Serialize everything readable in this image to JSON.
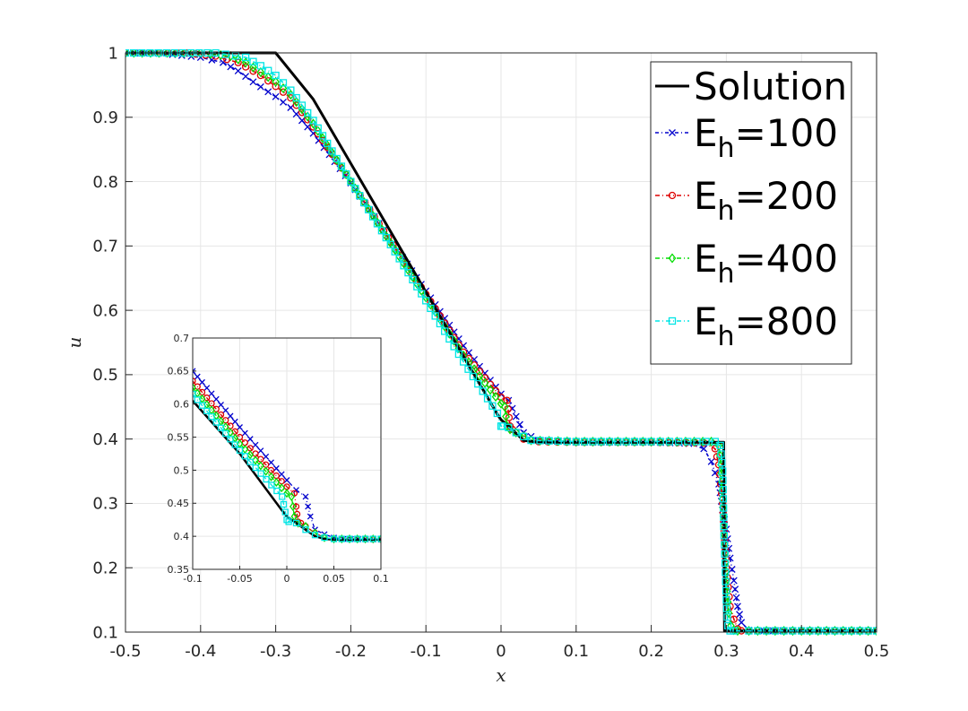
{
  "chart_data": [
    {
      "type": "line",
      "title": "",
      "xlabel": "x",
      "ylabel": "u",
      "xlim": [
        -0.5,
        0.5
      ],
      "ylim": [
        0.1,
        1
      ],
      "xticks": [
        -0.5,
        -0.4,
        -0.3,
        -0.2,
        -0.1,
        0,
        0.1,
        0.2,
        0.3,
        0.4,
        0.5
      ],
      "xtick_labels": [
        "-0.5",
        "-0.4",
        "-0.3",
        "-0.2",
        "-0.1",
        "0",
        "0.1",
        "0.2",
        "0.3",
        "0.4",
        "0.5"
      ],
      "yticks": [
        0.1,
        0.2,
        0.3,
        0.4,
        0.5,
        0.6,
        0.7,
        0.8,
        0.9,
        1
      ],
      "ytick_labels": [
        "0.1",
        "0.2",
        "0.3",
        "0.4",
        "0.5",
        "0.6",
        "0.7",
        "0.8",
        "0.9",
        "1"
      ],
      "grid": true,
      "legend_position": "top-right",
      "series": [
        {
          "name": "Solution",
          "legend_base": "Solution",
          "legend_sub": "",
          "legend_rest": "",
          "color": "#000000",
          "marker": "none",
          "dash": "solid",
          "lineWidth": 3,
          "x": [
            -0.5,
            -0.3,
            -0.25,
            -0.0046,
            0.0,
            0.01,
            0.03,
            0.05,
            0.1,
            0.29,
            0.2965,
            0.2975,
            0.3,
            0.5
          ],
          "y": [
            1.0,
            1.0,
            0.928,
            0.438,
            0.43,
            0.42,
            0.398,
            0.395,
            0.395,
            0.395,
            0.395,
            0.102,
            0.102,
            0.102
          ]
        },
        {
          "name": "E_h=100",
          "legend_base": "E",
          "legend_sub": "h",
          "legend_rest": "=100",
          "color": "#0000cc",
          "marker": "x",
          "dash": "4,3,1,3",
          "lineWidth": 1.6,
          "x": [
            -0.5,
            -0.45,
            -0.4,
            -0.37,
            -0.35,
            -0.33,
            -0.3,
            -0.28,
            -0.25,
            -0.2,
            -0.1,
            -0.05,
            0.0,
            0.01,
            0.02,
            0.03,
            0.05,
            0.1,
            0.2,
            0.25,
            0.27,
            0.28,
            0.29,
            0.295,
            0.3,
            0.305,
            0.31,
            0.315,
            0.32,
            0.33,
            0.35,
            0.4,
            0.5
          ],
          "y": [
            1.0,
            0.999,
            0.993,
            0.985,
            0.972,
            0.955,
            0.932,
            0.915,
            0.875,
            0.798,
            0.63,
            0.545,
            0.47,
            0.46,
            0.435,
            0.41,
            0.398,
            0.395,
            0.395,
            0.393,
            0.385,
            0.365,
            0.33,
            0.29,
            0.26,
            0.215,
            0.18,
            0.14,
            0.115,
            0.103,
            0.102,
            0.102,
            0.102
          ]
        },
        {
          "name": "E_h=200",
          "legend_base": "E",
          "legend_sub": "h",
          "legend_rest": "=200",
          "color": "#dd0000",
          "marker": "o",
          "dash": "5,3,1,3",
          "lineWidth": 1.6,
          "x": [
            -0.5,
            -0.42,
            -0.38,
            -0.35,
            -0.32,
            -0.3,
            -0.28,
            -0.25,
            -0.2,
            -0.1,
            -0.05,
            0.0,
            0.008,
            0.012,
            0.015,
            0.02,
            0.03,
            0.05,
            0.1,
            0.2,
            0.27,
            0.285,
            0.29,
            0.295,
            0.3,
            0.305,
            0.31,
            0.315,
            0.32,
            0.33,
            0.4,
            0.5
          ],
          "y": [
            1.0,
            1.0,
            0.995,
            0.985,
            0.965,
            0.948,
            0.93,
            0.885,
            0.8,
            0.625,
            0.535,
            0.465,
            0.46,
            0.42,
            0.415,
            0.41,
            0.4,
            0.396,
            0.395,
            0.395,
            0.394,
            0.385,
            0.36,
            0.3,
            0.2,
            0.14,
            0.12,
            0.105,
            0.102,
            0.102,
            0.102,
            0.102
          ]
        },
        {
          "name": "E_h=400",
          "legend_base": "E",
          "legend_sub": "h",
          "legend_rest": "=400",
          "color": "#00dd00",
          "marker": "diamond",
          "dash": "5,3,1,3",
          "lineWidth": 1.6,
          "x": [
            -0.5,
            -0.4,
            -0.36,
            -0.34,
            -0.32,
            -0.3,
            -0.28,
            -0.25,
            -0.2,
            -0.1,
            -0.05,
            0.0,
            0.005,
            0.008,
            0.012,
            0.02,
            0.04,
            0.1,
            0.2,
            0.28,
            0.29,
            0.293,
            0.296,
            0.3,
            0.303,
            0.306,
            0.31,
            0.315,
            0.33,
            0.4,
            0.5
          ],
          "y": [
            1.0,
            1.0,
            0.995,
            0.985,
            0.97,
            0.955,
            0.935,
            0.89,
            0.8,
            0.62,
            0.53,
            0.455,
            0.45,
            0.42,
            0.415,
            0.41,
            0.398,
            0.396,
            0.396,
            0.396,
            0.39,
            0.36,
            0.28,
            0.18,
            0.13,
            0.11,
            0.103,
            0.102,
            0.102,
            0.102,
            0.102
          ]
        },
        {
          "name": "E_h=800",
          "legend_base": "E",
          "legend_sub": "h",
          "legend_rest": "=800",
          "color": "#00e5e5",
          "marker": "square",
          "dash": "5,3,1,3",
          "lineWidth": 1.6,
          "x": [
            -0.5,
            -0.38,
            -0.34,
            -0.32,
            -0.3,
            -0.28,
            -0.25,
            -0.2,
            -0.1,
            -0.05,
            -0.005,
            0.0,
            0.002,
            0.01,
            0.02,
            0.04,
            0.1,
            0.2,
            0.285,
            0.292,
            0.295,
            0.297,
            0.3,
            0.302,
            0.305,
            0.31,
            0.33,
            0.4,
            0.5
          ],
          "y": [
            1.0,
            1.0,
            0.993,
            0.98,
            0.965,
            0.942,
            0.895,
            0.8,
            0.615,
            0.52,
            0.44,
            0.42,
            0.42,
            0.418,
            0.41,
            0.398,
            0.396,
            0.396,
            0.396,
            0.39,
            0.35,
            0.25,
            0.15,
            0.11,
            0.102,
            0.102,
            0.102,
            0.102,
            0.102
          ]
        }
      ]
    },
    {
      "type": "line",
      "title": "",
      "xlabel": "",
      "ylabel": "",
      "xlim": [
        -0.1,
        0.1
      ],
      "ylim": [
        0.35,
        0.7
      ],
      "xticks": [
        -0.1,
        -0.05,
        0,
        0.05,
        0.1
      ],
      "xtick_labels": [
        "-0.1",
        "-0.05",
        "0",
        "0.05",
        "0.1"
      ],
      "yticks": [
        0.35,
        0.4,
        0.45,
        0.5,
        0.55,
        0.6,
        0.65,
        0.7
      ],
      "ytick_labels": [
        "0.35",
        "0.4",
        "0.45",
        "0.5",
        "0.55",
        "0.6",
        "0.65",
        "0.7"
      ],
      "grid": true,
      "series": [
        {
          "color": "#000000",
          "marker": "none",
          "dash": "solid",
          "lineWidth": 2.5,
          "x": [
            -0.1,
            -0.05,
            -0.0046,
            0.0,
            0.01,
            0.02,
            0.03,
            0.04,
            0.05,
            0.1
          ],
          "y": [
            0.605,
            0.525,
            0.438,
            0.43,
            0.42,
            0.41,
            0.4,
            0.396,
            0.395,
            0.395
          ]
        },
        {
          "color": "#0000cc",
          "marker": "x",
          "dash": "4,3,1,3",
          "lineWidth": 1.3,
          "x": [
            -0.1,
            -0.05,
            0.0,
            0.01,
            0.02,
            0.025,
            0.03,
            0.04,
            0.05,
            0.06,
            0.1
          ],
          "y": [
            0.65,
            0.565,
            0.485,
            0.47,
            0.46,
            0.43,
            0.41,
            0.403,
            0.398,
            0.396,
            0.395
          ]
        },
        {
          "color": "#dd0000",
          "marker": "o",
          "dash": "5,3,1,3",
          "lineWidth": 1.3,
          "x": [
            -0.1,
            -0.05,
            0.0,
            0.008,
            0.01,
            0.012,
            0.015,
            0.02,
            0.03,
            0.04,
            0.05,
            0.1
          ],
          "y": [
            0.635,
            0.55,
            0.475,
            0.465,
            0.445,
            0.422,
            0.42,
            0.415,
            0.405,
            0.398,
            0.396,
            0.395
          ]
        },
        {
          "color": "#00dd00",
          "marker": "diamond",
          "dash": "5,3,1,3",
          "lineWidth": 1.3,
          "x": [
            -0.1,
            -0.05,
            0.0,
            0.005,
            0.008,
            0.012,
            0.02,
            0.03,
            0.04,
            0.05,
            0.1
          ],
          "y": [
            0.625,
            0.54,
            0.465,
            0.46,
            0.43,
            0.42,
            0.415,
            0.405,
            0.398,
            0.396,
            0.396
          ]
        },
        {
          "color": "#00e5e5",
          "marker": "square",
          "dash": "5,3,1,3",
          "lineWidth": 1.3,
          "x": [
            -0.1,
            -0.05,
            -0.005,
            0.0,
            0.002,
            0.01,
            0.02,
            0.03,
            0.04,
            0.05,
            0.1
          ],
          "y": [
            0.615,
            0.53,
            0.46,
            0.425,
            0.422,
            0.42,
            0.41,
            0.402,
            0.398,
            0.396,
            0.396
          ]
        }
      ]
    }
  ]
}
